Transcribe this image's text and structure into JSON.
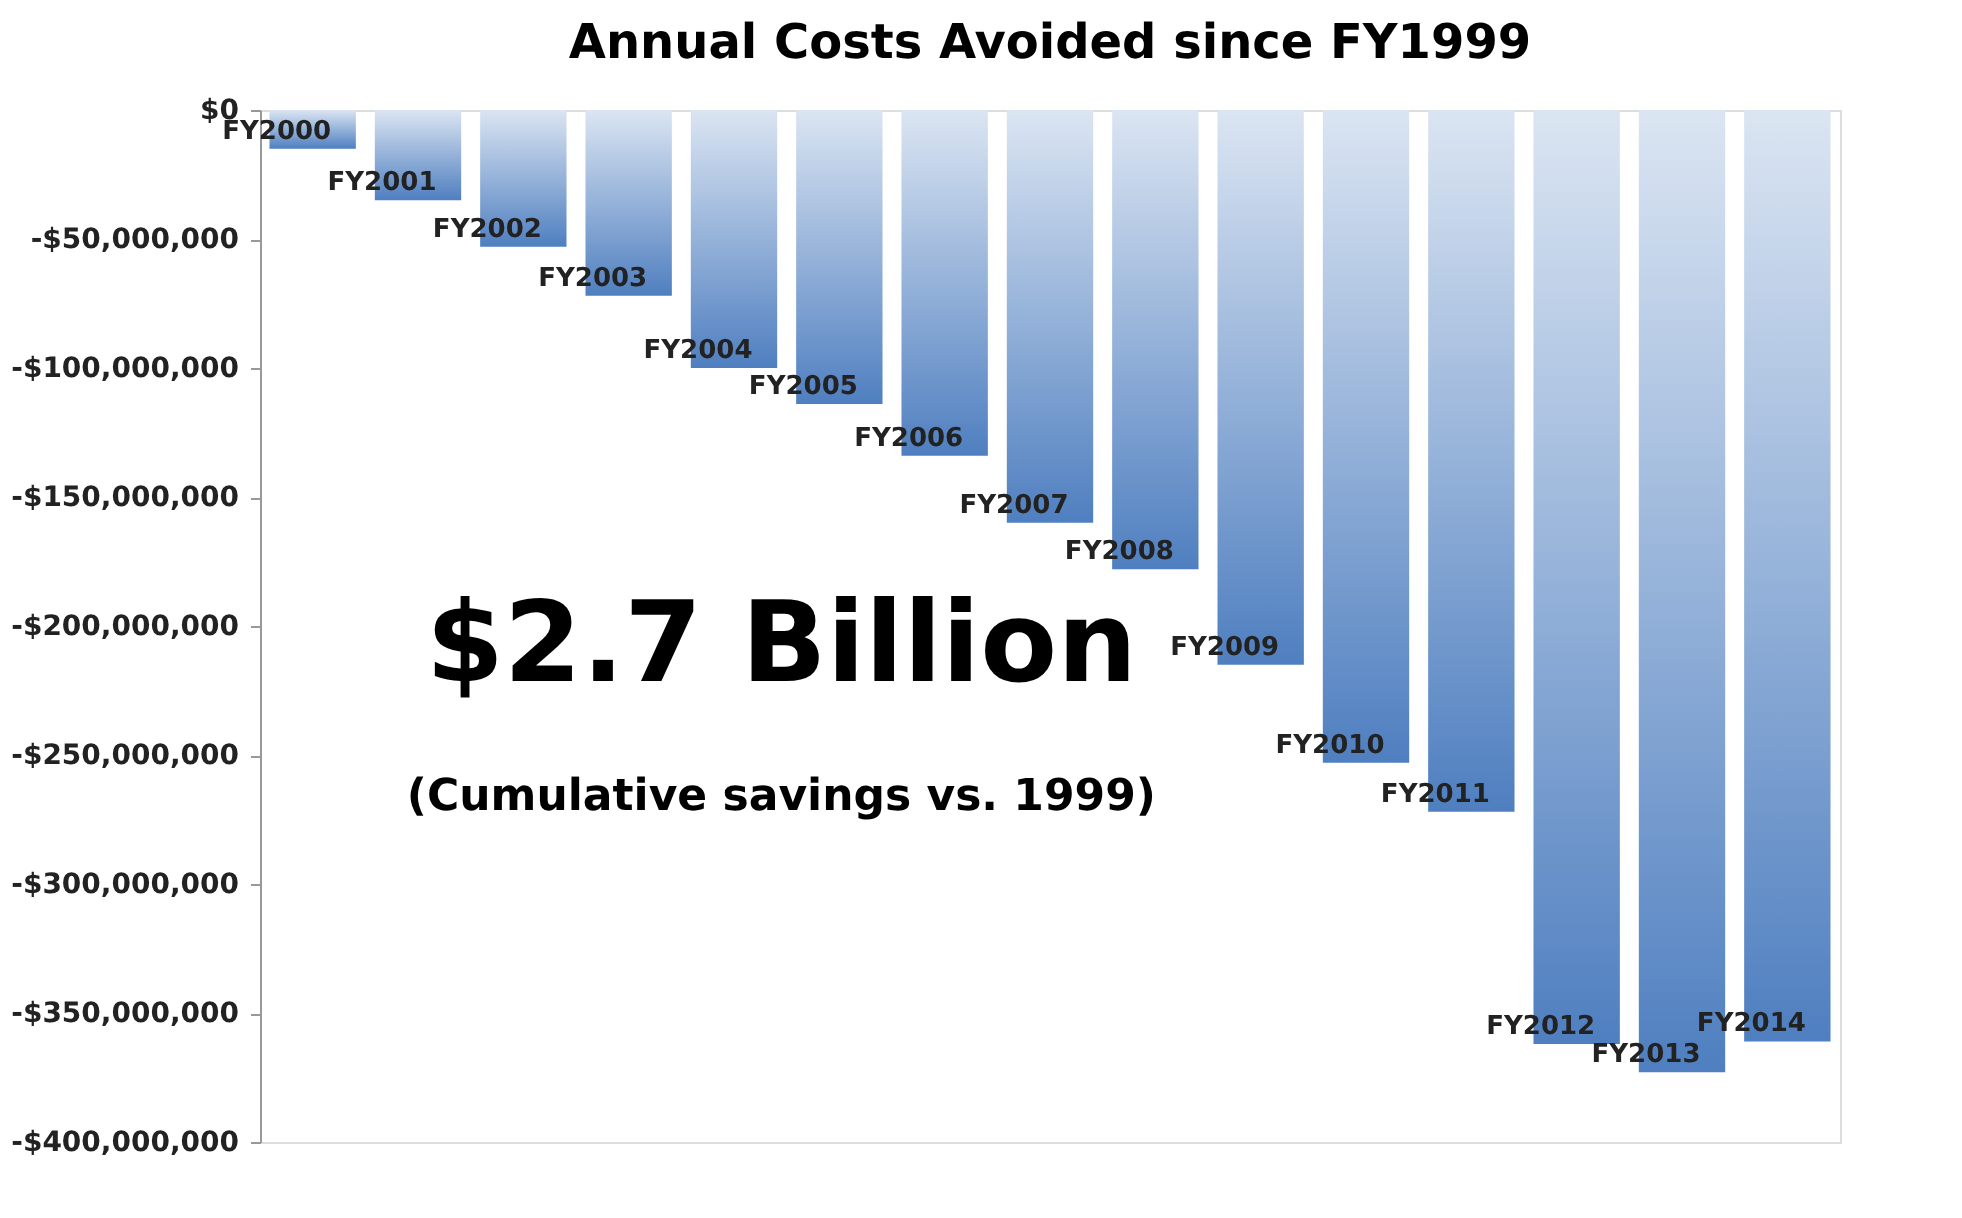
{
  "chart_data": {
    "type": "bar",
    "title": "Annual Costs Avoided since FY1999",
    "categories": [
      "FY2000",
      "FY2001",
      "FY2002",
      "FY2003",
      "FY2004",
      "FY2005",
      "FY2006",
      "FY2007",
      "FY2008",
      "FY2009",
      "FY2010",
      "FY2011",
      "FY2012",
      "FY2013",
      "FY2014"
    ],
    "values": [
      -15000000,
      -35000000,
      -53000000,
      -72000000,
      -100000000,
      -114000000,
      -134000000,
      -160000000,
      -178000000,
      -215000000,
      -253000000,
      -272000000,
      -362000000,
      -373000000,
      -361000000
    ],
    "color": "#4f7fc0",
    "ylim": [
      -400000000,
      0
    ],
    "yticks": [
      {
        "value": 0,
        "label": "$0"
      },
      {
        "value": -50000000,
        "label": "-$50,000,000"
      },
      {
        "value": -100000000,
        "label": "-$100,000,000"
      },
      {
        "value": -150000000,
        "label": "-$150,000,000"
      },
      {
        "value": -200000000,
        "label": "-$200,000,000"
      },
      {
        "value": -250000000,
        "label": "-$250,000,000"
      },
      {
        "value": -300000000,
        "label": "-$300,000,000"
      },
      {
        "value": -350000000,
        "label": "-$350,000,000"
      },
      {
        "value": -400000000,
        "label": "-$400,000,000"
      }
    ],
    "grid": false,
    "annotations": [
      "$2.7 Billion",
      "(Cumulative savings vs. 1999)"
    ]
  }
}
